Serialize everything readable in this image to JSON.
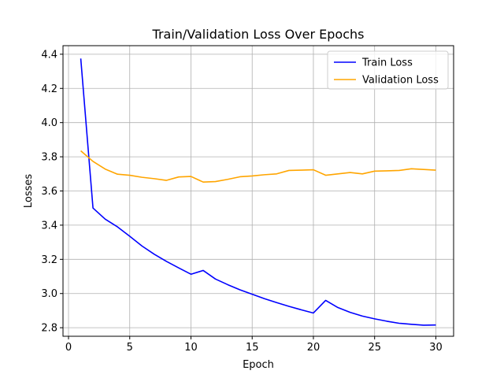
{
  "chart_data": {
    "type": "line",
    "title": "Train/Validation Loss Over Epochs",
    "xlabel": "Epoch",
    "ylabel": "Losses",
    "xlim": [
      -0.45,
      31.45
    ],
    "ylim": [
      2.75,
      4.45
    ],
    "xticks": [
      0,
      5,
      10,
      15,
      20,
      25,
      30
    ],
    "yticks": [
      2.8,
      3.0,
      3.2,
      3.4,
      3.6,
      3.8,
      4.0,
      4.2,
      4.4
    ],
    "grid": true,
    "legend_position": "top-right",
    "x": [
      1,
      2,
      3,
      4,
      5,
      6,
      7,
      8,
      9,
      10,
      11,
      12,
      13,
      14,
      15,
      16,
      17,
      18,
      19,
      20,
      21,
      22,
      23,
      24,
      25,
      26,
      27,
      28,
      29,
      30
    ],
    "series": [
      {
        "name": "Train Loss",
        "color": "#0000ff",
        "values": [
          4.375,
          3.5,
          3.435,
          3.39,
          3.335,
          3.278,
          3.23,
          3.188,
          3.15,
          3.113,
          3.135,
          3.085,
          3.052,
          3.022,
          2.996,
          2.97,
          2.947,
          2.925,
          2.905,
          2.886,
          2.96,
          2.918,
          2.89,
          2.868,
          2.852,
          2.838,
          2.826,
          2.82,
          2.815,
          2.816
        ]
      },
      {
        "name": "Validation Loss",
        "color": "#ffa500",
        "values": [
          3.835,
          3.773,
          3.728,
          3.698,
          3.692,
          3.68,
          3.672,
          3.662,
          3.682,
          3.685,
          3.652,
          3.655,
          3.668,
          3.683,
          3.688,
          3.695,
          3.7,
          3.72,
          3.722,
          3.724,
          3.692,
          3.7,
          3.708,
          3.7,
          3.716,
          3.718,
          3.72,
          3.73,
          3.726,
          3.722
        ]
      }
    ]
  }
}
